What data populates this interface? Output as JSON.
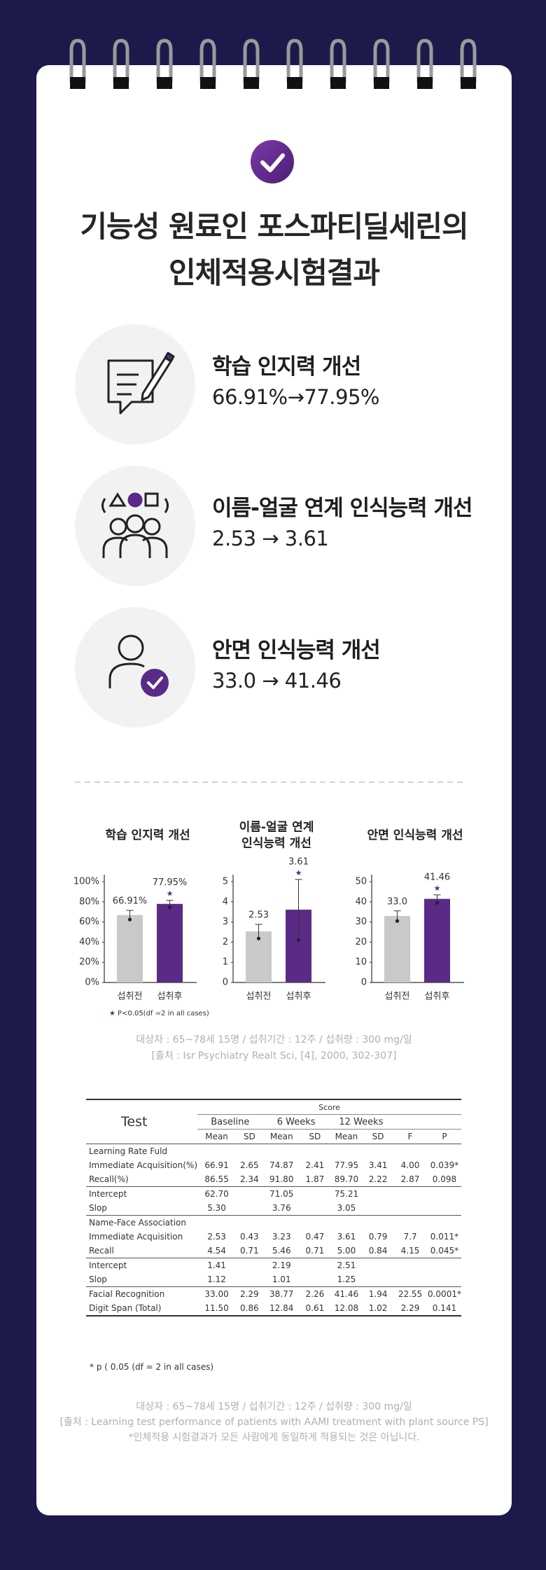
{
  "header": {
    "title": [
      "기능성 원료인 포스파티딜세린의",
      "인체적용시험결과"
    ]
  },
  "features": [
    {
      "title": "학습 인지력 개선",
      "value": "66.91%→77.95%"
    },
    {
      "title": "이름-얼굴 연계 인식능력 개선",
      "value": "2.53 → 3.61"
    },
    {
      "title": "안면 인식능력 개선",
      "value": "33.0 → 41.46"
    }
  ],
  "chart_data": [
    {
      "type": "bar",
      "title": [
        "학습 인지력 개선"
      ],
      "categories": [
        "섭취전",
        "섭취후"
      ],
      "values": [
        66.91,
        77.95
      ],
      "value_labels": [
        "66.91%",
        "77.95%"
      ],
      "errors": [
        4.5,
        3.5
      ],
      "significant": [
        false,
        true
      ],
      "colors": [
        "#c9c9c9",
        "#5b2a86"
      ],
      "ylim": [
        0,
        100
      ],
      "yticks": [
        {
          "value": 0,
          "label": "0%"
        },
        {
          "value": 20,
          "label": "20%"
        },
        {
          "value": 40,
          "label": "40%"
        },
        {
          "value": 60,
          "label": "60%"
        },
        {
          "value": 80,
          "label": "80%"
        },
        {
          "value": 100,
          "label": "100%"
        }
      ]
    },
    {
      "type": "bar",
      "title": [
        "이름-얼굴 연계",
        "인식능력 개선"
      ],
      "categories": [
        "섭취전",
        "섭취후"
      ],
      "values": [
        2.53,
        3.61
      ],
      "errors": [
        0.35,
        1.5
      ],
      "significant": [
        false,
        true
      ],
      "colors": [
        "#c9c9c9",
        "#5b2a86"
      ],
      "ylim": [
        0,
        5
      ],
      "yticks": [
        0,
        1,
        2,
        3,
        4,
        5
      ]
    },
    {
      "type": "bar",
      "title": [
        "안면 인식능력 개선"
      ],
      "categories": [
        "섭취전",
        "섭취후"
      ],
      "values": [
        33.0,
        41.46
      ],
      "value_labels": [
        "33.0",
        "41.46"
      ],
      "errors": [
        2.5,
        2
      ],
      "significant": [
        false,
        true
      ],
      "colors": [
        "#c9c9c9",
        "#5b2a86"
      ],
      "ylim": [
        0,
        50
      ],
      "yticks": [
        0,
        10,
        20,
        30,
        40,
        50
      ]
    }
  ],
  "chart_note": {
    "symbol": "★",
    "text": "P<0.05(df =2 in all cases)"
  },
  "source": [
    "대상자 : 65~78세 15명 / 섭취기간 : 12주 / 섭취량 : 300 mg/일",
    "[출처 : Isr Psychiatry Realt Sci, [4], 2000, 302-307]"
  ],
  "table": {
    "headers": {
      "test": "Test",
      "score": "Score",
      "groups": [
        "Baseline",
        "6 Weeks",
        "12 Weeks"
      ],
      "columns": [
        "Mean",
        "SD",
        "Mean",
        "SD",
        "Mean",
        "SD",
        "F",
        "P"
      ]
    },
    "groups": [
      {
        "title": "Learning Rate Fuld",
        "rows": [
          {
            "label": "Immediate Acquisition(%)",
            "cells": [
              "66.91",
              "2.65",
              "74.87",
              "2.41",
              "77.95",
              "3.41",
              "4.00",
              "0.039*"
            ]
          },
          {
            "label": "Recall(%)",
            "cells": [
              "86.55",
              "2.34",
              "91.80",
              "1.87",
              "89.70",
              "2.22",
              "2.87",
              "0.098"
            ]
          }
        ]
      },
      {
        "rows": [
          {
            "label": "Intercept",
            "cells": [
              "62.70",
              null,
              "71.05",
              null,
              "75.21",
              null,
              null,
              null
            ]
          },
          {
            "label": "Slop",
            "cells": [
              "5.30",
              null,
              "3.76",
              null,
              "3.05",
              null,
              null,
              null
            ]
          }
        ]
      },
      {
        "title": "Name-Face Association",
        "rows": [
          {
            "label": "Immediate Acquisition",
            "cells": [
              "2.53",
              "0.43",
              "3.23",
              "0.47",
              "3.61",
              "0.79",
              "7.7",
              "0.011*"
            ]
          },
          {
            "label": "Recall",
            "cells": [
              "4.54",
              "0.71",
              "5.46",
              "0.71",
              "5.00",
              "0.84",
              "4.15",
              "0.045*"
            ]
          }
        ]
      },
      {
        "rows": [
          {
            "label": "Intercept",
            "cells": [
              "1.41",
              null,
              "2.19",
              null,
              "2.51",
              null,
              null,
              null
            ]
          },
          {
            "label": "Slop",
            "cells": [
              "1.12",
              null,
              "1.01",
              null,
              "1.25",
              null,
              null,
              null
            ]
          }
        ]
      },
      {
        "rows": [
          {
            "label": "Facial Recognition",
            "cells": [
              "33.00",
              "2.29",
              "38.77",
              "2.26",
              "41.46",
              "1.94",
              "22.55",
              "0.0001*"
            ]
          },
          {
            "label": "Digit Span (Total)",
            "cells": [
              "11.50",
              "0.86",
              "12.84",
              "0.61",
              "12.08",
              "1.02",
              "2.29",
              "0.141"
            ]
          }
        ]
      }
    ]
  },
  "footnote": "* p ( 0.05 (df = 2 in all cases)",
  "disclaimer": [
    "대상자 : 65~78세 15명 / 섭취기간 : 12주 / 섭취량 : 300 mg/일",
    "[출처 : Learning test performance of patients with AAMI treatment with plant source PS]",
    "*인체적용 시험결과가 모든 사람에게 동일하게 적용되는 것은 아닙니다."
  ]
}
